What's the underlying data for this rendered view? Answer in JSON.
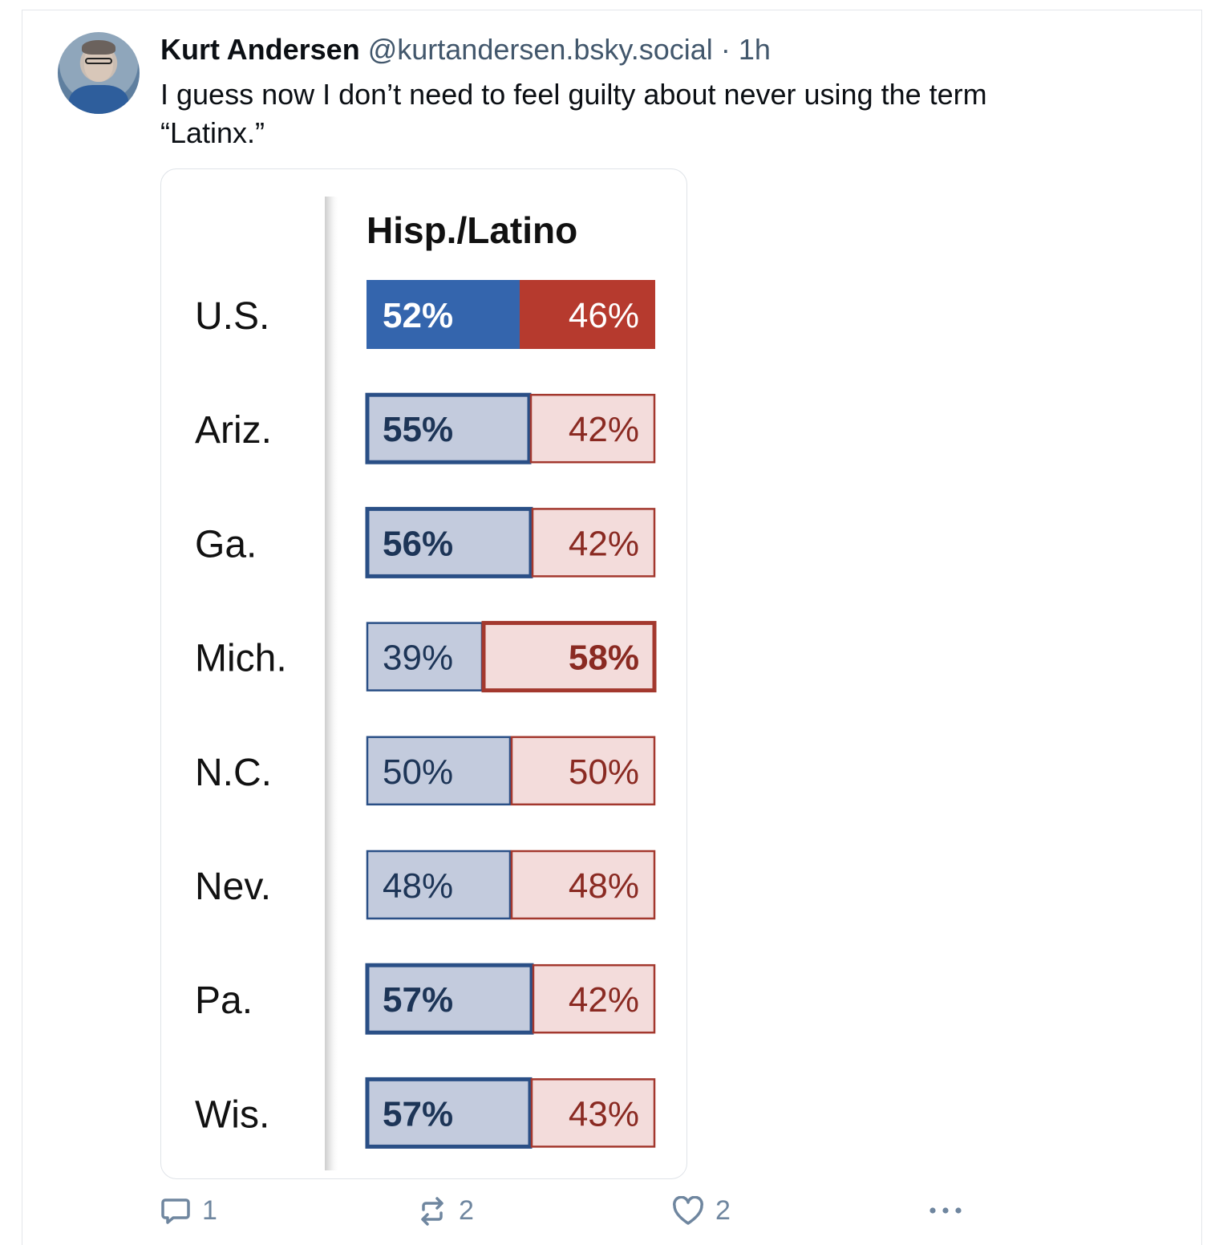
{
  "post": {
    "author_name": "Kurt Andersen",
    "handle": "@kurtandersen.bsky.social",
    "separator": "·",
    "time": "1h",
    "text_line1": "I guess now I don’t need to feel guilty about never using the term",
    "text_line2": "“Latinx.”"
  },
  "actions": {
    "reply_count": "1",
    "repost_count": "2",
    "like_count": "2",
    "icons": [
      "reply-icon",
      "repost-icon",
      "like-icon",
      "more-icon"
    ]
  },
  "colors": {
    "dem_solid": "#3465ad",
    "rep_solid": "#b63a2e",
    "dem_light": "#c3cbdd",
    "rep_light": "#f3dcdb",
    "dem_border": "#2a4f86",
    "rep_border": "#a3382e",
    "action_gray": "#6f869f"
  },
  "chart_data": {
    "type": "bar",
    "title": "Hisp./Latino",
    "categories": [
      "U.S.",
      "Ariz.",
      "Ga.",
      "Mich.",
      "N.C.",
      "Nev.",
      "Pa.",
      "Wis."
    ],
    "series": [
      {
        "values": [
          52,
          55,
          56,
          39,
          50,
          48,
          57,
          57
        ]
      },
      {
        "values": [
          46,
          42,
          42,
          58,
          50,
          48,
          42,
          43
        ]
      }
    ],
    "labels": [
      [
        "52%",
        "46%"
      ],
      [
        "55%",
        "42%"
      ],
      [
        "56%",
        "42%"
      ],
      [
        "39%",
        "58%"
      ],
      [
        "50%",
        "50%"
      ],
      [
        "48%",
        "48%"
      ],
      [
        "57%",
        "42%"
      ],
      [
        "57%",
        "43%"
      ]
    ],
    "winner": [
      "dem",
      "dem",
      "dem",
      "rep",
      "tie",
      "tie",
      "dem",
      "dem"
    ],
    "stacked": true,
    "legend": "none",
    "grid": false
  }
}
